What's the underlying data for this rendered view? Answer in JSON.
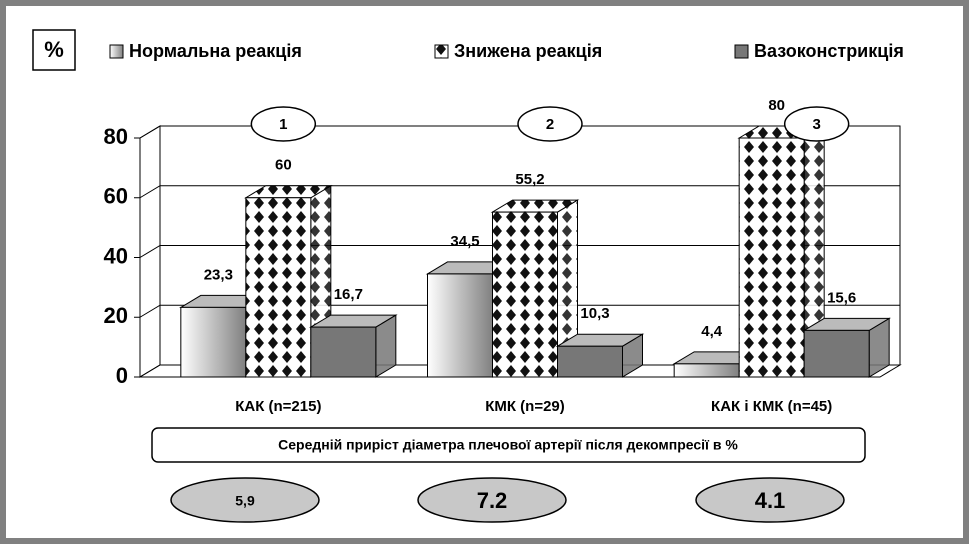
{
  "chart_data": {
    "type": "bar",
    "ylabel": "%",
    "categories": [
      "КАК (n=215)",
      "КМК (n=29)",
      "КАК і КМК (n=45)"
    ],
    "series": [
      {
        "name": "Нормальна реакція",
        "color": "#808080",
        "values": [
          23.3,
          34.5,
          4.4
        ],
        "value_labels": [
          "23,3",
          "34,5",
          "4,4"
        ]
      },
      {
        "name": "Знижена реакція",
        "color": "#111111",
        "values": [
          60,
          55.2,
          80
        ],
        "value_labels": [
          "60",
          "55,2",
          "80"
        ]
      },
      {
        "name": "Вазоконстрикція",
        "color": "#777777",
        "values": [
          16.7,
          10.3,
          15.6
        ],
        "value_labels": [
          "16,7",
          "10,3",
          "15,6"
        ]
      }
    ],
    "ylim": [
      0,
      80
    ],
    "yticks": [
      0,
      20,
      40,
      60,
      80
    ],
    "grid": true,
    "annotations": {
      "circles": [
        "1",
        "2",
        "3"
      ],
      "note": "Середній приріст діаметра плечової артерії після декомпресії в %",
      "means": [
        "5,9",
        "7.2",
        "4.1"
      ]
    }
  }
}
